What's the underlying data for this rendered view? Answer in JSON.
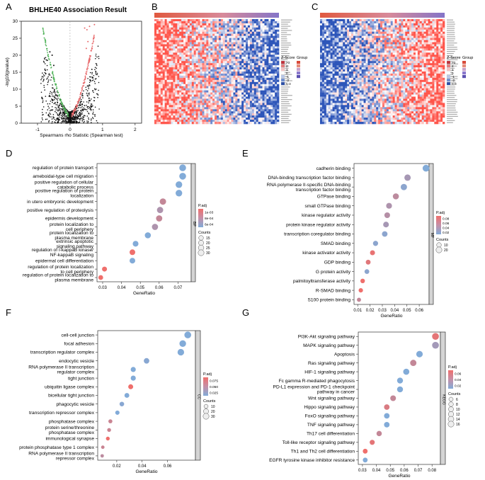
{
  "panel_letters": [
    "A",
    "B",
    "C",
    "D",
    "E",
    "F",
    "G"
  ],
  "colors": {
    "red": "#e8696b",
    "blue": "#7aa6d4",
    "green": "#52b35a",
    "black": "#111111",
    "heat_red": "#d7403f",
    "heat_blue": "#3b5fb0"
  },
  "chart_data": [
    {
      "panel": "A",
      "type": "scatter",
      "title": "BHLHE40 Association Result",
      "xlabel": "Spearmans rho Statistic (Spearman test)",
      "ylabel": "-log10(pvalue)",
      "xlim": [
        -1.5,
        2.2
      ],
      "ylim": [
        0,
        30
      ],
      "xticks": [
        -1,
        0,
        1,
        2
      ],
      "yticks": [
        0,
        5,
        10,
        15,
        20,
        25,
        30
      ],
      "note": "volcano plot; negative correlations green, positive red"
    },
    {
      "panel": "B",
      "type": "heatmap",
      "legend_title": "Z-Score",
      "legend_values": [
        ">3",
        "2",
        "1",
        "0",
        "-1",
        "-2",
        "<-3"
      ],
      "group_legend_title": "Group",
      "note": "top positively correlated genes; columns ordered by BHLHE40 expression"
    },
    {
      "panel": "C",
      "type": "heatmap",
      "legend_title": "Z-Score",
      "legend_values": [
        ">3",
        "2",
        "1",
        "0",
        "-1",
        "-2",
        "<-3"
      ],
      "group_legend_title": "Group",
      "note": "top negatively correlated genes"
    },
    {
      "panel": "D",
      "type": "scatter",
      "category": "BP",
      "xlabel": "GeneRatio",
      "xlim": [
        0.027,
        0.077
      ],
      "xticks": [
        0.03,
        0.04,
        0.05,
        0.06,
        0.07
      ],
      "padj_title": "P.adj",
      "padj_ticks": [
        "1e-03",
        "8e-04",
        "6e-04"
      ],
      "counts_title": "Counts",
      "counts_ticks": [
        15,
        20,
        25,
        30
      ],
      "terms": [
        {
          "label": [
            "regulation of protein transport"
          ],
          "x": 0.0725,
          "count": 30,
          "padj": 0.0005
        },
        {
          "label": [
            "ameboidal-type cell migration"
          ],
          "x": 0.0725,
          "count": 30,
          "padj": 0.0005
        },
        {
          "label": [
            "positive regulation of cellular",
            "catabolic process"
          ],
          "x": 0.0705,
          "count": 28,
          "padj": 0.0005
        },
        {
          "label": [
            "positive regulation of protein",
            "localization"
          ],
          "x": 0.0705,
          "count": 28,
          "padj": 0.0005
        },
        {
          "label": [
            "in utero embryonic development"
          ],
          "x": 0.062,
          "count": 25,
          "padj": 0.0008
        },
        {
          "label": [
            "positive regulation of proteolysis"
          ],
          "x": 0.0605,
          "count": 24,
          "padj": 0.0007
        },
        {
          "label": [
            "epidermis development"
          ],
          "x": 0.06,
          "count": 24,
          "padj": 0.0008
        },
        {
          "label": [
            "protein localization to",
            "cell periphery"
          ],
          "x": 0.0578,
          "count": 23,
          "padj": 0.0007
        },
        {
          "label": [
            "protein localization to",
            "plasma membrane"
          ],
          "x": 0.054,
          "count": 22,
          "padj": 0.0005
        },
        {
          "label": [
            "extrinsic apoptotic",
            "signaling pathway"
          ],
          "x": 0.0475,
          "count": 19,
          "padj": 0.0005
        },
        {
          "label": [
            "regulation of I-kappaB kinase/",
            "NF-kappaB signaling"
          ],
          "x": 0.0458,
          "count": 18,
          "padj": 0.001
        },
        {
          "label": [
            "epidermal cell differentiation"
          ],
          "x": 0.0458,
          "count": 18,
          "padj": 0.0005
        },
        {
          "label": [
            "regulation of protein localization",
            "to cell periphery"
          ],
          "x": 0.031,
          "count": 12,
          "padj": 0.001
        },
        {
          "label": [
            "regulation of protein localization to",
            "plasma membrane"
          ],
          "x": 0.029,
          "count": 11,
          "padj": 0.001
        }
      ]
    },
    {
      "panel": "E",
      "type": "scatter",
      "category": "MF",
      "xlabel": "GeneRatio",
      "xlim": [
        0.007,
        0.068
      ],
      "xticks": [
        0.01,
        0.02,
        0.03,
        0.04,
        0.05,
        0.06
      ],
      "padj_title": "P.adj",
      "padj_ticks": [
        "0.08",
        "0.06",
        "0.04",
        "0.02"
      ],
      "counts_title": "Counts",
      "counts_ticks": [
        10,
        20
      ],
      "terms": [
        {
          "label": [
            "cadherin binding"
          ],
          "x": 0.0655,
          "count": 26,
          "padj": 0.005
        },
        {
          "label": [
            "DNA-binding transcription factor binding"
          ],
          "x": 0.0505,
          "count": 22,
          "padj": 0.03
        },
        {
          "label": [
            "RNA polymerase II-specific DNA-binding",
            "transcription factor binding"
          ],
          "x": 0.0475,
          "count": 21,
          "padj": 0.012
        },
        {
          "label": [
            "GTPase binding"
          ],
          "x": 0.041,
          "count": 19,
          "padj": 0.045
        },
        {
          "label": [
            "small GTPase binding"
          ],
          "x": 0.0355,
          "count": 17,
          "padj": 0.035
        },
        {
          "label": [
            "kinase regulator activity"
          ],
          "x": 0.034,
          "count": 16,
          "padj": 0.04
        },
        {
          "label": [
            "protein kinase regulator activity"
          ],
          "x": 0.033,
          "count": 16,
          "padj": 0.03
        },
        {
          "label": [
            "transcription coregulator binding"
          ],
          "x": 0.032,
          "count": 15,
          "padj": 0.012
        },
        {
          "label": [
            "SMAD binding"
          ],
          "x": 0.0245,
          "count": 12,
          "padj": 0.012
        },
        {
          "label": [
            "kinase activator activity"
          ],
          "x": 0.022,
          "count": 11,
          "padj": 0.075
        },
        {
          "label": [
            "GDP binding"
          ],
          "x": 0.0185,
          "count": 10,
          "padj": 0.07
        },
        {
          "label": [
            "G protein activity"
          ],
          "x": 0.0175,
          "count": 9,
          "padj": 0.012
        },
        {
          "label": [
            "palmitoyltransferase activity"
          ],
          "x": 0.014,
          "count": 8,
          "padj": 0.08
        },
        {
          "label": [
            "R-SMAD binding"
          ],
          "x": 0.0125,
          "count": 7,
          "padj": 0.08
        },
        {
          "label": [
            "S100 protein binding"
          ],
          "x": 0.011,
          "count": 6,
          "padj": 0.05
        }
      ]
    },
    {
      "panel": "F",
      "type": "scatter",
      "category": "CC",
      "xlabel": "GeneRatio",
      "xlim": [
        0.005,
        0.082
      ],
      "xticks": [
        0.02,
        0.04,
        0.06
      ],
      "padj_title": "P.adj",
      "padj_ticks": [
        "0.075",
        "0.050",
        "0.025"
      ],
      "counts_title": "Counts",
      "counts_ticks": [
        10,
        20,
        30
      ],
      "terms": [
        {
          "label": [
            "cell-cell junction"
          ],
          "x": 0.076,
          "count": 34,
          "padj": 0.005
        },
        {
          "label": [
            "focal adhesion"
          ],
          "x": 0.072,
          "count": 32,
          "padj": 0.005
        },
        {
          "label": [
            "transcription regulator complex"
          ],
          "x": 0.0705,
          "count": 31,
          "padj": 0.005
        },
        {
          "label": [
            "endocytic vesicle"
          ],
          "x": 0.0435,
          "count": 19,
          "padj": 0.01
        },
        {
          "label": [
            "RNA polymerase II transcription",
            "regulator complex"
          ],
          "x": 0.033,
          "count": 15,
          "padj": 0.005
        },
        {
          "label": [
            "tight junction"
          ],
          "x": 0.033,
          "count": 15,
          "padj": 0.005
        },
        {
          "label": [
            "ubiquitin ligase complex"
          ],
          "x": 0.031,
          "count": 14,
          "padj": 0.09
        },
        {
          "label": [
            "bicellular tight junction"
          ],
          "x": 0.028,
          "count": 13,
          "padj": 0.005
        },
        {
          "label": [
            "phagocytic vesicle"
          ],
          "x": 0.024,
          "count": 11,
          "padj": 0.01
        },
        {
          "label": [
            "transcription repressor complex"
          ],
          "x": 0.0205,
          "count": 9,
          "padj": 0.005
        },
        {
          "label": [
            "phosphatase complex"
          ],
          "x": 0.015,
          "count": 7,
          "padj": 0.06
        },
        {
          "label": [
            "protein serine/threonine",
            "phosphatase complex"
          ],
          "x": 0.014,
          "count": 6,
          "padj": 0.06
        },
        {
          "label": [
            "immunological synapse"
          ],
          "x": 0.013,
          "count": 6,
          "padj": 0.09
        },
        {
          "label": [
            "protein phosphatase type 1 complex"
          ],
          "x": 0.009,
          "count": 4,
          "padj": 0.06
        },
        {
          "label": [
            "RNA polymerase II transcription",
            "repressor complex"
          ],
          "x": 0.0085,
          "count": 4,
          "padj": 0.05
        }
      ]
    },
    {
      "panel": "G",
      "type": "scatter",
      "category": "KEGG",
      "xlabel": "GeneRatio",
      "xlim": [
        0.027,
        0.086
      ],
      "xticks": [
        0.03,
        0.04,
        0.05,
        0.06,
        0.07,
        0.08
      ],
      "padj_title": "P.adj",
      "padj_ticks": [
        "0.06",
        "0.04",
        "0.02"
      ],
      "counts_title": "Counts",
      "counts_ticks": [
        6,
        8,
        10,
        12,
        14,
        16
      ],
      "terms": [
        {
          "label": [
            "PI3K-Akt signaling pathway"
          ],
          "x": 0.0825,
          "count": 16,
          "padj": 0.06
        },
        {
          "label": [
            "MAPK signaling pathway"
          ],
          "x": 0.0825,
          "count": 16,
          "padj": 0.03
        },
        {
          "label": [
            "Apoptosis"
          ],
          "x": 0.071,
          "count": 14,
          "padj": 0.015
        },
        {
          "label": [
            "Ras signaling pathway"
          ],
          "x": 0.0665,
          "count": 13,
          "padj": 0.045
        },
        {
          "label": [
            "HIF-1 signaling pathway"
          ],
          "x": 0.0615,
          "count": 12,
          "padj": 0.015
        },
        {
          "label": [
            "Fc gamma R-mediated phagocytosis"
          ],
          "x": 0.057,
          "count": 11,
          "padj": 0.015
        },
        {
          "label": [
            "PD-L1 expression and PD-1 checkpoint",
            "pathway in cancer"
          ],
          "x": 0.057,
          "count": 11,
          "padj": 0.015
        },
        {
          "label": [
            "Wnt signaling pathway"
          ],
          "x": 0.052,
          "count": 10,
          "padj": 0.045
        },
        {
          "label": [
            "Hippo signaling pathway"
          ],
          "x": 0.0475,
          "count": 9,
          "padj": 0.055
        },
        {
          "label": [
            "FoxO signaling pathway"
          ],
          "x": 0.0475,
          "count": 9,
          "padj": 0.015
        },
        {
          "label": [
            "TNF signaling pathway"
          ],
          "x": 0.0475,
          "count": 9,
          "padj": 0.015
        },
        {
          "label": [
            "Th17 cell differentiation"
          ],
          "x": 0.042,
          "count": 8,
          "padj": 0.045
        },
        {
          "label": [
            "Toll-like receptor signaling pathway"
          ],
          "x": 0.037,
          "count": 7,
          "padj": 0.06
        },
        {
          "label": [
            "Th1 and Th2 cell differentiation"
          ],
          "x": 0.032,
          "count": 6,
          "padj": 0.065
        },
        {
          "label": [
            "EGFR tyrosine kinase inhibitor resistance"
          ],
          "x": 0.032,
          "count": 6,
          "padj": 0.015
        }
      ]
    }
  ]
}
